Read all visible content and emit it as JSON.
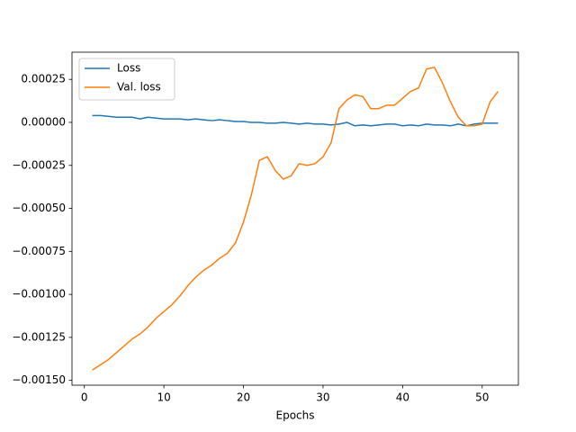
{
  "chart_data": {
    "type": "line",
    "x_label": "Epochs",
    "x": [
      1,
      2,
      3,
      4,
      5,
      6,
      7,
      8,
      9,
      10,
      11,
      12,
      13,
      14,
      15,
      16,
      17,
      18,
      19,
      20,
      21,
      22,
      23,
      24,
      25,
      26,
      27,
      28,
      29,
      30,
      31,
      32,
      33,
      34,
      35,
      36,
      37,
      38,
      39,
      40,
      41,
      42,
      43,
      44,
      45,
      46,
      47,
      48,
      49,
      50,
      51,
      52
    ],
    "series": [
      {
        "name": "Loss",
        "color": "#1f77b4",
        "values": [
          4e-05,
          4e-05,
          3.5e-05,
          3e-05,
          3e-05,
          3e-05,
          2e-05,
          3e-05,
          2.5e-05,
          2e-05,
          2e-05,
          2e-05,
          1.5e-05,
          2e-05,
          1.5e-05,
          1e-05,
          1.5e-05,
          1e-05,
          5e-06,
          5e-06,
          0,
          0,
          -5e-06,
          -5e-06,
          0,
          -5e-06,
          -1e-05,
          -5e-06,
          -1e-05,
          -1e-05,
          -1.5e-05,
          -1e-05,
          0,
          -2e-05,
          -1.5e-05,
          -2e-05,
          -1.5e-05,
          -1e-05,
          -1e-05,
          -2e-05,
          -1.5e-05,
          -2e-05,
          -1e-05,
          -1.5e-05,
          -1.5e-05,
          -2e-05,
          -1e-05,
          -2e-05,
          -1e-05,
          -5e-06,
          -5e-06,
          -5e-06
        ]
      },
      {
        "name": "Val. loss",
        "color": "#ff7f0e",
        "values": [
          -0.00144,
          -0.00141,
          -0.00138,
          -0.00134,
          -0.0013,
          -0.00126,
          -0.00123,
          -0.00119,
          -0.00114,
          -0.0011,
          -0.00106,
          -0.00101,
          -0.00095,
          -0.0009,
          -0.00086,
          -0.00083,
          -0.00079,
          -0.00076,
          -0.0007,
          -0.00058,
          -0.00042,
          -0.00022,
          -0.0002,
          -0.00028,
          -0.00033,
          -0.00031,
          -0.00024,
          -0.00025,
          -0.00024,
          -0.0002,
          -0.00012,
          8e-05,
          0.00013,
          0.00016,
          0.00015,
          8e-05,
          8e-05,
          0.0001,
          0.0001,
          0.00014,
          0.00018,
          0.0002,
          0.00031,
          0.00032,
          0.00023,
          0.00012,
          3e-05,
          -2e-05,
          -2e-05,
          -1e-05,
          0.00012,
          0.00018
        ]
      }
    ],
    "xlim": [
      -1.55,
      54.55
    ],
    "xticks": [
      0,
      10,
      20,
      30,
      40,
      50
    ],
    "ylim": [
      -0.001528,
      0.000408
    ],
    "yticks": [
      {
        "value": 0.00025,
        "label": "0.00025"
      },
      {
        "value": 0,
        "label": "0.00000"
      },
      {
        "value": -0.00025,
        "label": "−0.00025"
      },
      {
        "value": -0.0005,
        "label": "−0.00050"
      },
      {
        "value": -0.00075,
        "label": "−0.00075"
      },
      {
        "value": -0.001,
        "label": "−0.00100"
      },
      {
        "value": -0.00125,
        "label": "−0.00125"
      },
      {
        "value": -0.0015,
        "label": "−0.00150"
      }
    ],
    "legend": "upper left"
  }
}
